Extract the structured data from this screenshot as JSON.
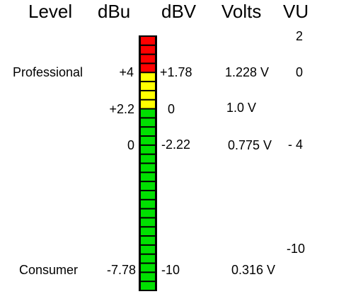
{
  "headers": [
    "Level",
    "dBu",
    "dBV",
    "Volts",
    "VU"
  ],
  "rows": [
    {
      "level": "Professional",
      "dbu": "+4",
      "dbv": "+1.78",
      "volts": "1.228 V"
    },
    {
      "dbu": "+2.2",
      "dbv": "0",
      "volts": "1.0 V"
    },
    {
      "dbu": "0",
      "dbv": "-2.22",
      "volts": "0.775 V"
    },
    {
      "level": "Consumer",
      "dbu": "-7.78",
      "dbv": "-10",
      "volts": "0.316 V"
    }
  ],
  "vu_labels": [
    "2",
    "0",
    "- 4",
    "-10"
  ]
}
